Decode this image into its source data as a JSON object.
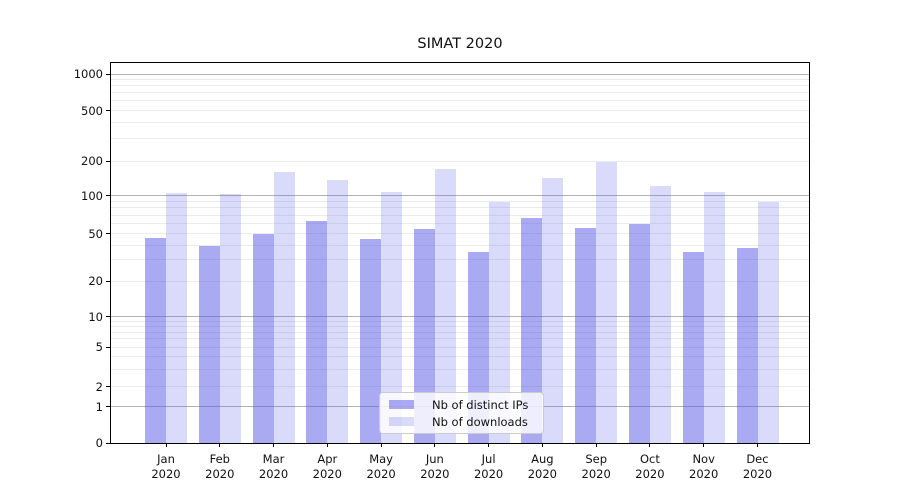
{
  "chart_data": {
    "type": "bar",
    "title": "SIMAT 2020",
    "categories": [
      "Jan",
      "Feb",
      "Mar",
      "Apr",
      "May",
      "Jun",
      "Jul",
      "Aug",
      "Sep",
      "Oct",
      "Nov",
      "Dec"
    ],
    "x_tick_year": "2020",
    "series": [
      {
        "name": "Nb of distinct IPs",
        "color": "rgba(85,85,230,0.5)",
        "values": [
          46,
          39,
          50,
          63,
          45,
          54,
          35,
          67,
          55,
          60,
          35,
          38
        ]
      },
      {
        "name": "Nb of downloads",
        "color": "rgba(85,85,230,0.22)",
        "values": [
          105,
          103,
          160,
          138,
          107,
          170,
          89,
          143,
          195,
          120,
          107,
          89
        ]
      }
    ],
    "xlabel": "",
    "ylabel": "",
    "yscale": "symlog",
    "ylim": [
      0,
      1000
    ],
    "y_ticks": [
      0,
      1,
      2,
      5,
      10,
      20,
      50,
      100,
      200,
      500,
      1000
    ],
    "grid": true,
    "legend_position": "lower center",
    "colors": {
      "major_grid": "#b2b2b2",
      "minor_grid": "#ebebeb",
      "axis": "#000000",
      "text": "#111111"
    }
  }
}
